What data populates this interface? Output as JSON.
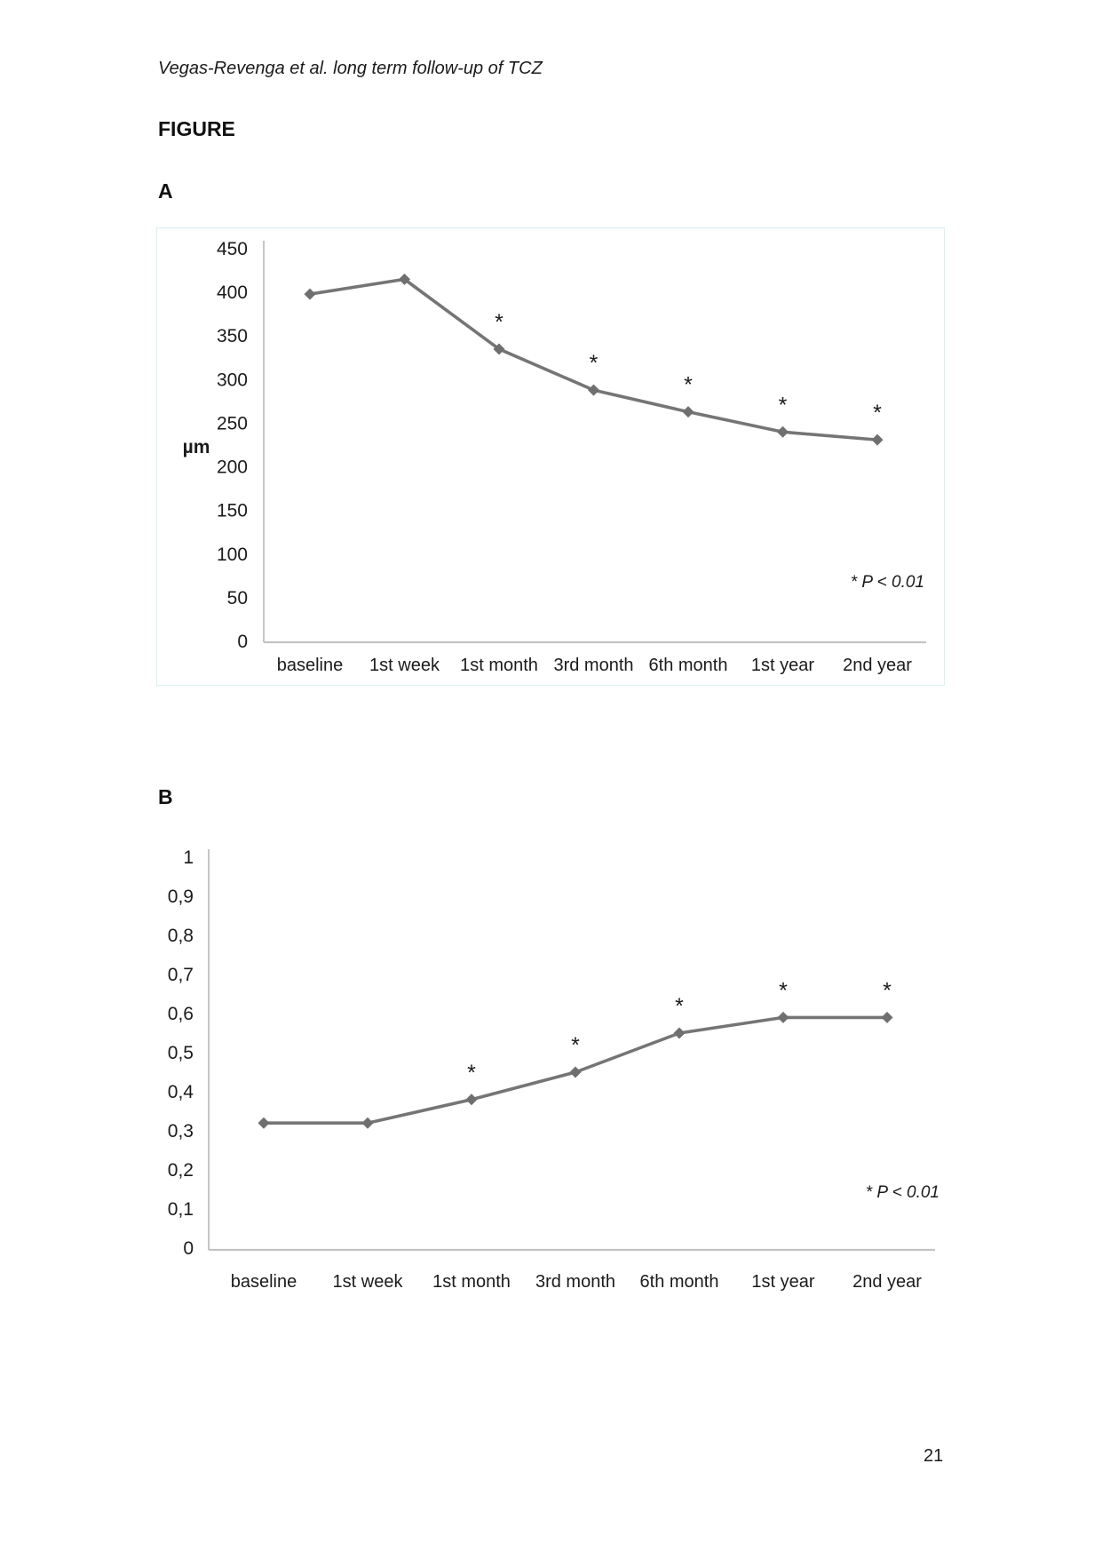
{
  "page": {
    "running_head": "Vegas-Revenga et al. long term follow-up of TCZ",
    "figure_title": "FIGURE",
    "page_number": "21"
  },
  "colors": {
    "line": "#757575",
    "marker": "#6f6f6f",
    "y_axis": "#a6a6a6",
    "x_axis": "#c3c3c3",
    "panel_border": "#d9f1f3",
    "text": "#1b1b1b"
  },
  "chart_data": [
    {
      "panel_label": "A",
      "type": "line",
      "categories": [
        "baseline",
        "1st week",
        "1st month",
        "3rd month",
        "6th month",
        "1st year",
        "2nd year"
      ],
      "values": [
        398,
        415,
        335,
        288,
        263,
        240,
        231
      ],
      "significant": [
        false,
        false,
        true,
        true,
        true,
        true,
        true
      ],
      "significance_marker": "*",
      "annotation": "* P < 0.01",
      "ylabel": "µm",
      "ylim": [
        0,
        450
      ],
      "yticks": [
        "450",
        "400",
        "350",
        "300",
        "250",
        "200",
        "150",
        "100",
        "50",
        "0"
      ],
      "grid": false,
      "legend": null,
      "marker": "diamond"
    },
    {
      "panel_label": "B",
      "type": "line",
      "categories": [
        "baseline",
        "1st week",
        "1st month",
        "3rd month",
        "6th month",
        "1st year",
        "2nd year"
      ],
      "values": [
        0.32,
        0.32,
        0.38,
        0.45,
        0.55,
        0.59,
        0.59
      ],
      "significant": [
        false,
        false,
        true,
        true,
        true,
        true,
        true
      ],
      "significance_marker": "*",
      "annotation": "* P < 0.01",
      "ylabel": "",
      "ylim": [
        0,
        1
      ],
      "yticks": [
        "1",
        "0,9",
        "0,8",
        "0,7",
        "0,6",
        "0,5",
        "0,4",
        "0,3",
        "0,2",
        "0,1",
        "0"
      ],
      "grid": false,
      "legend": null,
      "marker": "diamond"
    }
  ]
}
